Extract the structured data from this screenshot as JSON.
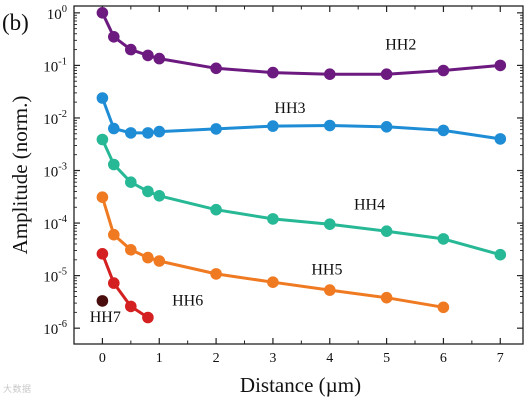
{
  "panel_label": "(b)",
  "watermark": "大数据",
  "chart_data": {
    "type": "line",
    "title": "",
    "xlabel": "Distance (µm)",
    "ylabel": "Amplitude (norm.)",
    "xlim": [
      -0.5,
      7.4
    ],
    "ylim": [
      5e-07,
      1.35
    ],
    "yscale": "log",
    "x_ticks": [
      0,
      1,
      2,
      3,
      4,
      5,
      6,
      7
    ],
    "y_ticks": [
      1e-06,
      1e-05,
      0.0001,
      0.001,
      0.01,
      0.1,
      1
    ],
    "y_tick_labels": [
      {
        "base": "10",
        "exp": "-6"
      },
      {
        "base": "10",
        "exp": "-5"
      },
      {
        "base": "10",
        "exp": "-4"
      },
      {
        "base": "10",
        "exp": "-3"
      },
      {
        "base": "10",
        "exp": "-2"
      },
      {
        "base": "10",
        "exp": "-1"
      },
      {
        "base": "10",
        "exp": "0"
      }
    ],
    "grid": false,
    "legend": "none",
    "series": [
      {
        "name": "HH2",
        "color": "#6d1a80",
        "x": [
          0,
          0.2,
          0.5,
          0.8,
          1,
          2,
          3,
          4,
          5,
          6,
          7
        ],
        "y": [
          1.0,
          0.35,
          0.2,
          0.155,
          0.135,
          0.088,
          0.073,
          0.068,
          0.068,
          0.08,
          0.1
        ]
      },
      {
        "name": "HH3",
        "color": "#1f8dd6",
        "x": [
          0,
          0.2,
          0.5,
          0.8,
          1,
          2,
          3,
          4,
          5,
          6,
          7
        ],
        "y": [
          0.024,
          0.0063,
          0.0052,
          0.0052,
          0.0055,
          0.0062,
          0.007,
          0.0072,
          0.0068,
          0.0058,
          0.004
        ]
      },
      {
        "name": "HH4",
        "color": "#27b896",
        "x": [
          0,
          0.2,
          0.5,
          0.8,
          1,
          2,
          3,
          4,
          5,
          6,
          7
        ],
        "y": [
          0.0039,
          0.0013,
          0.0006,
          0.0004,
          0.00033,
          0.00018,
          0.00012,
          9.5e-05,
          7e-05,
          5e-05,
          2.5e-05
        ]
      },
      {
        "name": "HH5",
        "color": "#ef7a22",
        "x": [
          0,
          0.2,
          0.5,
          0.8,
          1,
          2,
          3,
          4,
          5,
          6
        ],
        "y": [
          0.00031,
          6e-05,
          3.1e-05,
          2.2e-05,
          1.9e-05,
          1.08e-05,
          7.5e-06,
          5.3e-06,
          3.8e-06,
          2.5e-06
        ]
      },
      {
        "name": "HH6",
        "color": "#d42020",
        "x": [
          0,
          0.2,
          0.5,
          0.8
        ],
        "y": [
          2.6e-05,
          7.2e-06,
          2.6e-06,
          1.6e-06
        ]
      },
      {
        "name": "HH7",
        "color": "#4a0d0d",
        "x": [
          0
        ],
        "y": [
          3.3e-06
        ]
      }
    ],
    "annotations": [
      {
        "text": "HH2",
        "x": 5.25,
        "y": 0.2,
        "color": "#6d1a80"
      },
      {
        "text": "HH3",
        "x": 3.3,
        "y": 0.0125,
        "color": "#1f8dd6"
      },
      {
        "text": "HH4",
        "x": 4.7,
        "y": 0.00018,
        "color": "#27b896"
      },
      {
        "text": "HH5",
        "x": 3.95,
        "y": 1.05e-05,
        "color": "#ef7a22"
      },
      {
        "text": "HH6",
        "x": 1.5,
        "y": 2.7e-06,
        "color": "#d42020"
      },
      {
        "text": "HH7",
        "x": 0.05,
        "y": 1.3e-06,
        "color": "#4a0d0d"
      }
    ]
  }
}
